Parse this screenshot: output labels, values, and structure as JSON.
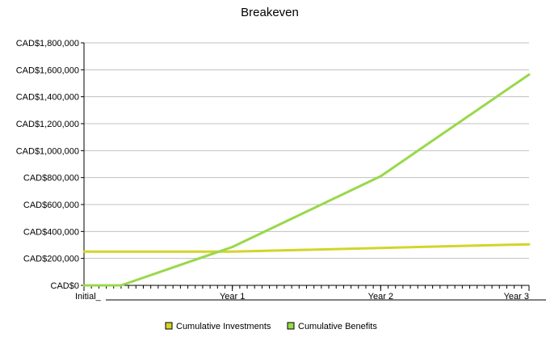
{
  "chart_data": {
    "type": "line",
    "title": "Breakeven",
    "xlabel": "",
    "ylabel": "",
    "categories": [
      "Initial_",
      "Year 1",
      "Year 2",
      "Year 3"
    ],
    "ylim": [
      0,
      1800000
    ],
    "y_ticks": [
      0,
      200000,
      400000,
      600000,
      800000,
      1000000,
      1200000,
      1400000,
      1600000,
      1800000
    ],
    "y_tick_labels": [
      "CAD$0",
      "CAD$200,000",
      "CAD$400,000",
      "CAD$600,000",
      "CAD$800,000",
      "CAD$1,000,000",
      "CAD$1,200,000",
      "CAD$1,400,000",
      "CAD$1,600,000",
      "CAD$1,800,000"
    ],
    "grid": true,
    "legend_position": "bottom",
    "series": [
      {
        "name": "Cumulative Investments",
        "color": "#d4d42a",
        "points": [
          [
            0,
            250000
          ],
          [
            1,
            250000
          ],
          [
            2,
            278000
          ],
          [
            3,
            305000
          ]
        ]
      },
      {
        "name": "Cumulative Benefits",
        "color": "#99d84a",
        "points": [
          [
            0,
            0
          ],
          [
            0.25,
            0
          ],
          [
            1,
            285000
          ],
          [
            2,
            810000
          ],
          [
            3,
            1565000
          ]
        ]
      }
    ]
  }
}
